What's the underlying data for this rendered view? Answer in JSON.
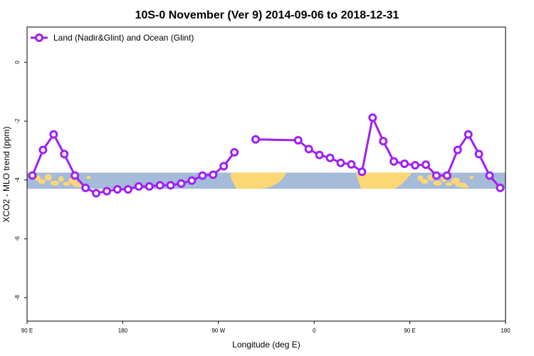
{
  "chart_data": {
    "type": "line",
    "title": "10S-0 November (Ver 9)   2014-09-06 to 2018-12-31",
    "xlabel": "Longitude (deg E)",
    "ylabel": "XCO2 - MLO trend (ppm)",
    "xlim": [
      90,
      540
    ],
    "ylim": [
      -8.8,
      1.2
    ],
    "yticks": [
      0,
      -2,
      -4,
      -6,
      -8
    ],
    "yticklabels": [
      "0",
      "-2",
      "-4",
      "-6",
      "-8"
    ],
    "xticks": [
      90,
      180,
      270,
      360,
      450,
      540
    ],
    "xticklabels": [
      "90 E",
      "180",
      "90 W",
      "0",
      "90 E",
      "180"
    ],
    "band": {
      "ymin": -4.3,
      "ymax": -3.75,
      "ocean_color": "#a4bbd9",
      "land_color": "#fdd774"
    },
    "legend": {
      "position": "top-left"
    },
    "series": [
      {
        "name": "Land (Nadir&Glint) and Ocean (Glint)",
        "color": "#a020f0",
        "x": [
          95,
          105,
          115,
          125,
          135,
          145,
          155,
          165,
          175,
          185,
          195,
          205,
          215,
          225,
          235,
          245,
          255,
          265,
          275,
          285,
          295,
          305,
          345,
          355,
          365,
          375,
          385,
          395,
          405,
          415,
          425,
          435,
          445,
          455,
          465,
          475,
          485,
          495,
          505,
          515,
          525,
          535
        ],
        "y": [
          -3.85,
          -2.98,
          -2.45,
          -3.12,
          -3.85,
          -4.27,
          -4.45,
          -4.38,
          -4.32,
          -4.32,
          -4.22,
          -4.22,
          -4.18,
          -4.18,
          -4.12,
          -4.02,
          -3.85,
          -3.82,
          -3.53,
          -3.06,
          null,
          -2.62,
          -2.65,
          -2.95,
          -3.15,
          -3.25,
          -3.42,
          -3.47,
          -3.72,
          -1.88,
          -2.68,
          -3.37,
          -3.45,
          -3.5,
          -3.48,
          -3.85,
          -3.85,
          -2.98,
          -2.45,
          -3.12,
          -3.85,
          -4.27
        ]
      }
    ]
  }
}
